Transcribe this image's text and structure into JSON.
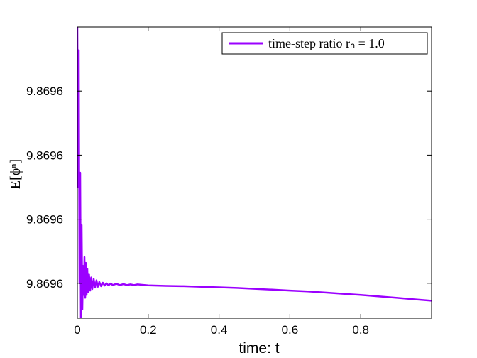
{
  "chart_data": {
    "type": "line",
    "xlabel": "time: t",
    "ylabel": "E[ϕⁿ]",
    "xlim": [
      0,
      1
    ],
    "xticks": [
      0,
      0.2,
      0.4,
      0.6,
      0.8
    ],
    "xtick_labels": [
      "0",
      "0.2",
      "0.4",
      "0.6",
      "0.8"
    ],
    "ylim": [
      0,
      1
    ],
    "yticks": [
      0.78,
      0.56,
      0.34,
      0.12
    ],
    "ytick_labels": [
      "9.8696",
      "9.8696",
      "9.8696",
      "9.8696"
    ],
    "grid": false,
    "legend_position": "top-right",
    "legend_label": "time-step ratio rₙ = 1.0",
    "series": [
      {
        "name": "time-step ratio rₙ = 1.0",
        "color": "#9b00ff",
        "x": [
          0,
          0.002,
          0.004,
          0.006,
          0.008,
          0.01,
          0.012,
          0.014,
          0.016,
          0.018,
          0.02,
          0.022,
          0.024,
          0.026,
          0.028,
          0.03,
          0.033,
          0.036,
          0.039,
          0.042,
          0.046,
          0.05,
          0.054,
          0.058,
          0.062,
          0.067,
          0.072,
          0.077,
          0.082,
          0.088,
          0.094,
          0.1,
          0.11,
          0.12,
          0.13,
          0.14,
          0.15,
          0.16,
          0.17,
          0.18,
          0.2,
          0.25,
          0.3,
          0.35,
          0.4,
          0.45,
          0.5,
          0.55,
          0.6,
          0.65,
          0.7,
          0.75,
          0.8,
          0.85,
          0.9,
          0.95,
          1.0
        ],
        "y": [
          1.0,
          0.45,
          0.92,
          0.12,
          0.5,
          -0.02,
          0.32,
          0.03,
          0.18,
          0.08,
          0.21,
          0.07,
          0.19,
          0.08,
          0.17,
          0.09,
          0.15,
          0.095,
          0.14,
          0.1,
          0.135,
          0.105,
          0.13,
          0.108,
          0.125,
          0.11,
          0.122,
          0.112,
          0.12,
          0.113,
          0.119,
          0.114,
          0.118,
          0.114,
          0.117,
          0.114,
          0.116,
          0.114,
          0.116,
          0.115,
          0.113,
          0.111,
          0.11,
          0.108,
          0.106,
          0.104,
          0.101,
          0.098,
          0.095,
          0.092,
          0.088,
          0.084,
          0.08,
          0.075,
          0.07,
          0.065,
          0.06
        ]
      }
    ]
  }
}
